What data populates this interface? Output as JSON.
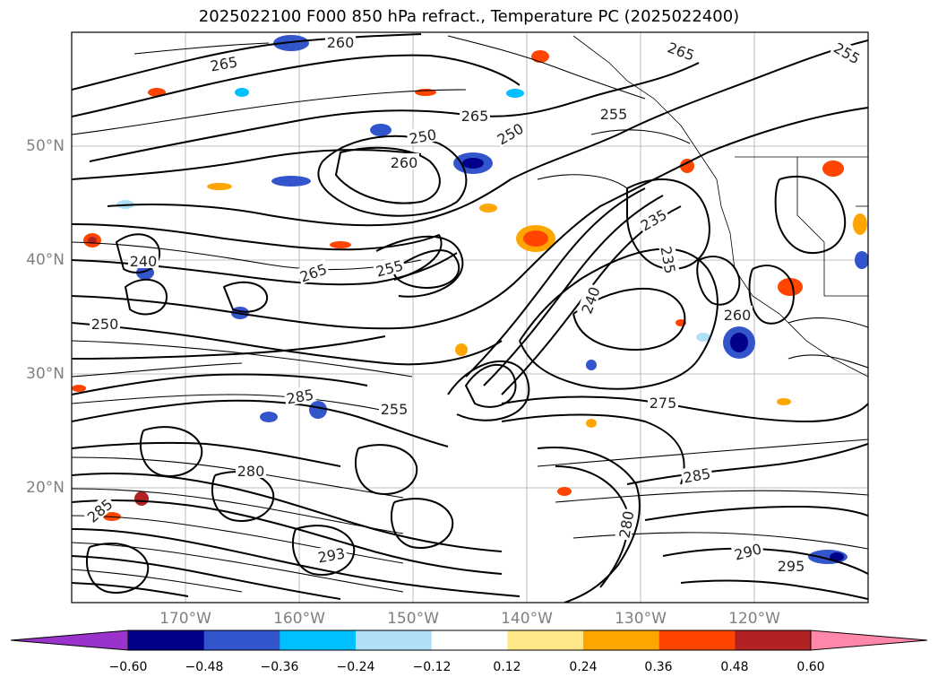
{
  "title": "2025022100 F000 850 hPa refract., Temperature PC (2025022400)",
  "latitude_labels": [
    "50°N",
    "40°N",
    "30°N",
    "20°N"
  ],
  "longitude_labels": [
    "170°W",
    "160°W",
    "150°W",
    "140°W",
    "130°W",
    "120°W"
  ],
  "contour_labels": [
    "265",
    "260",
    "265",
    "255",
    "250",
    "260",
    "265",
    "255",
    "240",
    "250",
    "265",
    "255",
    "250",
    "235",
    "235",
    "240",
    "260",
    "275",
    "285",
    "280",
    "290",
    "295",
    "285",
    "255",
    "293",
    "280",
    "285"
  ],
  "colorbar": {
    "ticks": [
      "−0.60",
      "−0.48",
      "−0.36",
      "−0.24",
      "−0.12",
      "0.12",
      "0.24",
      "0.36",
      "0.48",
      "0.60"
    ],
    "colors": [
      "#9933cc",
      "#00008b",
      "#3355cc",
      "#00bfff",
      "#b0e0f8",
      "#ffffff",
      "#ffe88a",
      "#ffa500",
      "#ff4500",
      "#b22222",
      "#ff88aa"
    ]
  },
  "map": {
    "lat_range": [
      10,
      60
    ],
    "lon_range": [
      -180,
      -110
    ],
    "grid": true
  }
}
